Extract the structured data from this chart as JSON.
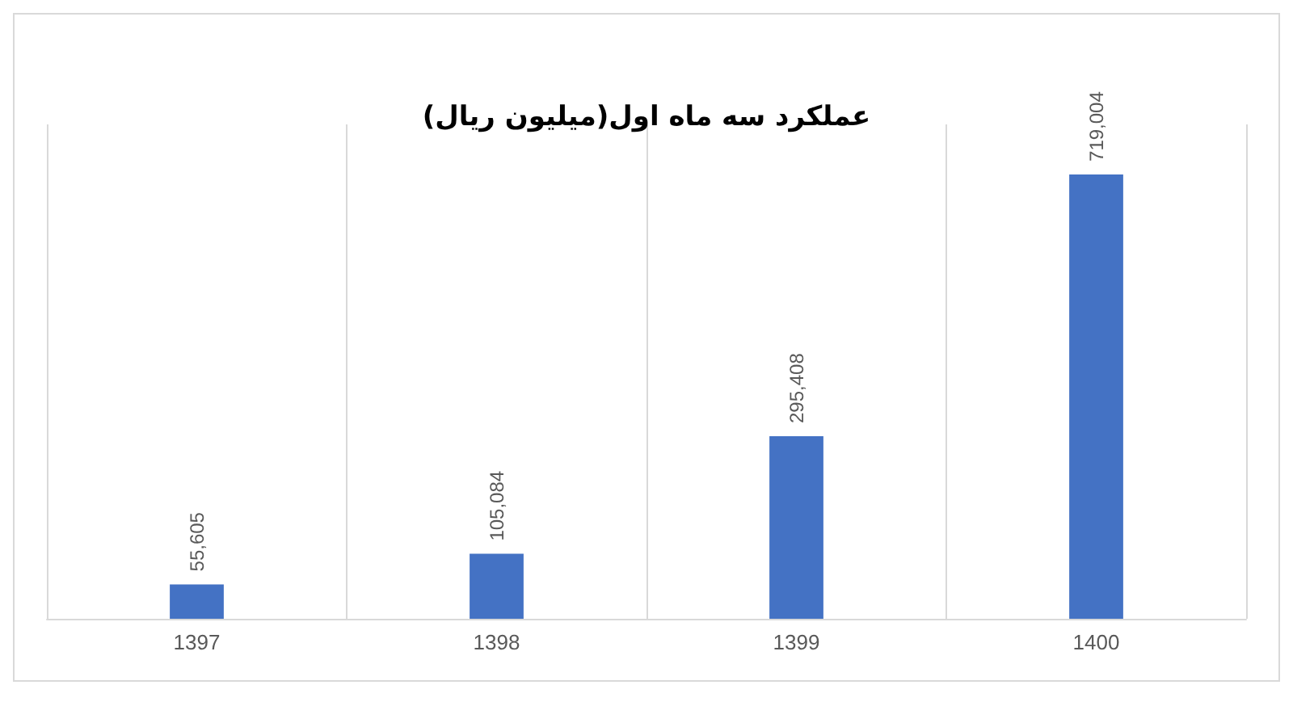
{
  "chart_data": {
    "type": "bar",
    "title": "عملکرد سه ماه اول(میلیون ریال)",
    "categories": [
      "1397",
      "1398",
      "1399",
      "1400"
    ],
    "values": [
      55605,
      105084,
      295408,
      719004
    ],
    "value_labels": [
      "55,605",
      "105,084",
      "295,408",
      "719,004"
    ],
    "color": "#4472c4",
    "grid": "x"
  }
}
